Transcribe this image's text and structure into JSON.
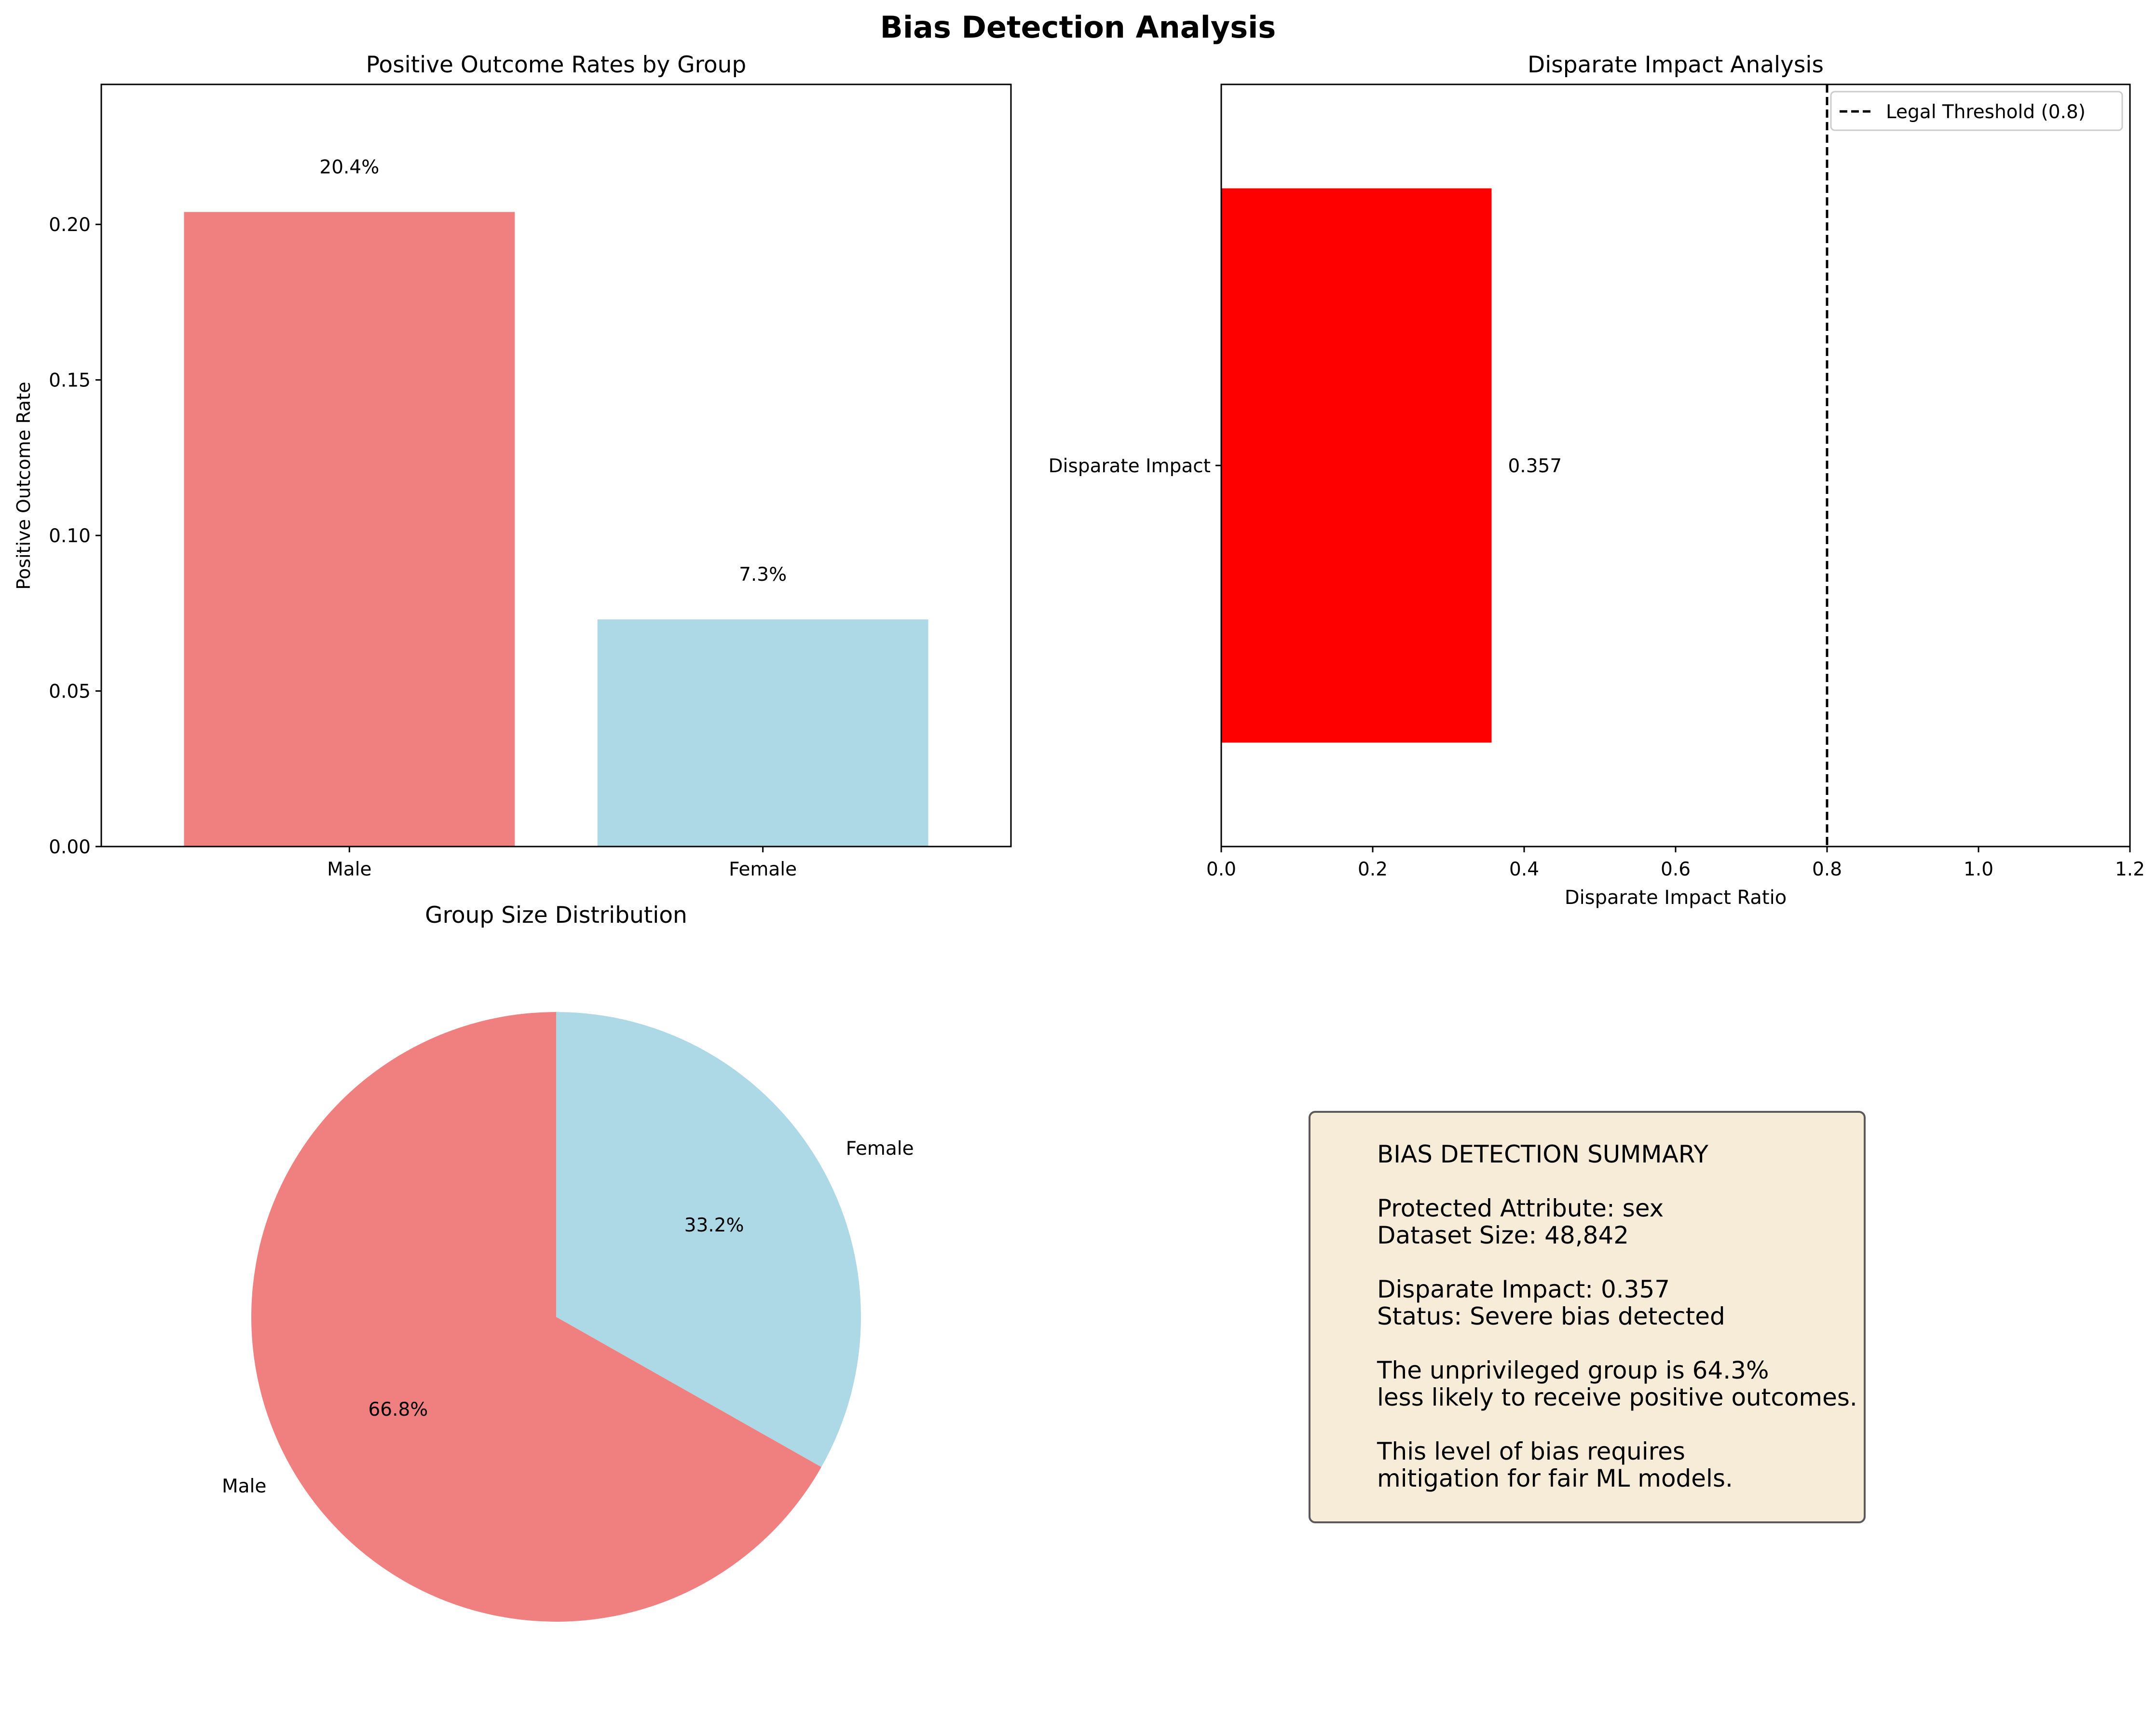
{
  "figure": {
    "title": "Bias Detection Analysis"
  },
  "chart_data": [
    {
      "type": "bar",
      "title": "Positive Outcome Rates by Group",
      "xlabel": "",
      "ylabel": "Positive Outcome Rate",
      "categories": [
        "Male",
        "Female"
      ],
      "values": [
        0.204,
        0.073
      ],
      "data_labels": [
        "20.4%",
        "7.3%"
      ],
      "colors": [
        "#f08080",
        "#add8e6"
      ],
      "ylim": [
        0,
        0.245
      ],
      "yticks": [
        0.0,
        0.05,
        0.1,
        0.15,
        0.2
      ],
      "ytick_labels": [
        "0.00",
        "0.05",
        "0.10",
        "0.15",
        "0.20"
      ],
      "grid": false
    },
    {
      "type": "bar",
      "orientation": "horizontal",
      "title": "Disparate Impact Analysis",
      "xlabel": "Disparate Impact Ratio",
      "ylabel": "",
      "categories": [
        "Disparate Impact"
      ],
      "values": [
        0.357
      ],
      "data_labels": [
        "0.357"
      ],
      "colors": [
        "#ff0000"
      ],
      "xlim": [
        0,
        1.2
      ],
      "xticks": [
        0.0,
        0.2,
        0.4,
        0.6,
        0.8,
        1.0,
        1.2
      ],
      "xtick_labels": [
        "0.0",
        "0.2",
        "0.4",
        "0.6",
        "0.8",
        "1.0",
        "1.2"
      ],
      "reference_line": {
        "value": 0.8,
        "style": "dashed",
        "color": "#000000",
        "label": "Legal Threshold (0.8)"
      },
      "legend": {
        "placement": "upper-right",
        "entries": [
          "Legal Threshold (0.8)"
        ]
      },
      "grid": false
    },
    {
      "type": "pie",
      "title": "Group Size Distribution",
      "labels": [
        "Male",
        "Female"
      ],
      "values": [
        66.8,
        33.2
      ],
      "pct_labels": [
        "66.8%",
        "33.2%"
      ],
      "colors": [
        "#f08080",
        "#add8e6"
      ],
      "start_angle_deg": 90
    }
  ],
  "summary": {
    "heading": "BIAS DETECTION SUMMARY",
    "attribute_line": "Protected Attribute: sex",
    "dataset_line": "Dataset Size: 48,842",
    "impact_line": "Disparate Impact: 0.357",
    "status_line": "Status: Severe bias detected",
    "explain_line1": "The unprivileged group is 64.3%",
    "explain_line2": "less likely to receive positive outcomes.",
    "advice_line1": "This level of bias requires",
    "advice_line2": "mitigation for fair ML models."
  }
}
